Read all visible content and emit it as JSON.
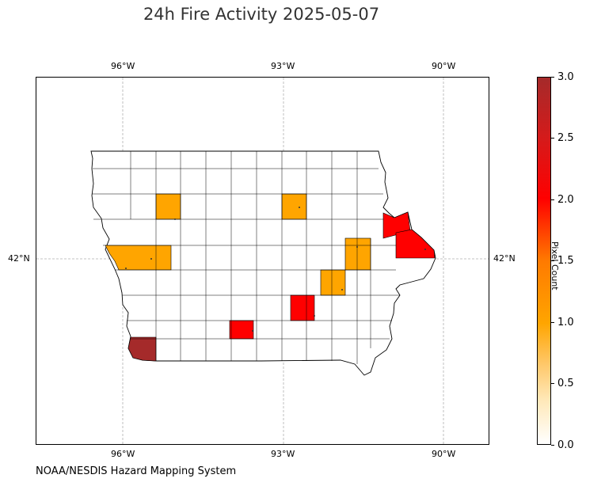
{
  "title": "24h Fire Activity 2025-05-07",
  "credit": "NOAA/NESDIS Hazard Mapping System",
  "map": {
    "type": "choropleth",
    "region": "Iowa counties",
    "graticule": {
      "longitudes": [
        "96°W",
        "93°W",
        "90°W"
      ],
      "latitudes": [
        "42°N"
      ],
      "style": "dashed-gray"
    },
    "highlighted_counties": [
      {
        "value": 1,
        "color": "#ffa500"
      },
      {
        "value": 1,
        "color": "#ffa500"
      },
      {
        "value": 1,
        "color": "#ffa500"
      },
      {
        "value": 1,
        "color": "#ffa500"
      },
      {
        "value": 1,
        "color": "#ffa500"
      },
      {
        "value": 2,
        "color": "#ff0000"
      },
      {
        "value": 2,
        "color": "#ff0000"
      },
      {
        "value": 2,
        "color": "#ff0000"
      },
      {
        "value": 3,
        "color": "#a52a2a"
      }
    ]
  },
  "colorbar": {
    "label": "Pixel Count",
    "ticks": [
      "0.0",
      "0.5",
      "1.0",
      "1.5",
      "2.0",
      "2.5",
      "3.0"
    ],
    "min": 0,
    "max": 3,
    "colors": [
      "#ffffff",
      "#ffa500",
      "#ff0000",
      "#a52a2a"
    ]
  }
}
